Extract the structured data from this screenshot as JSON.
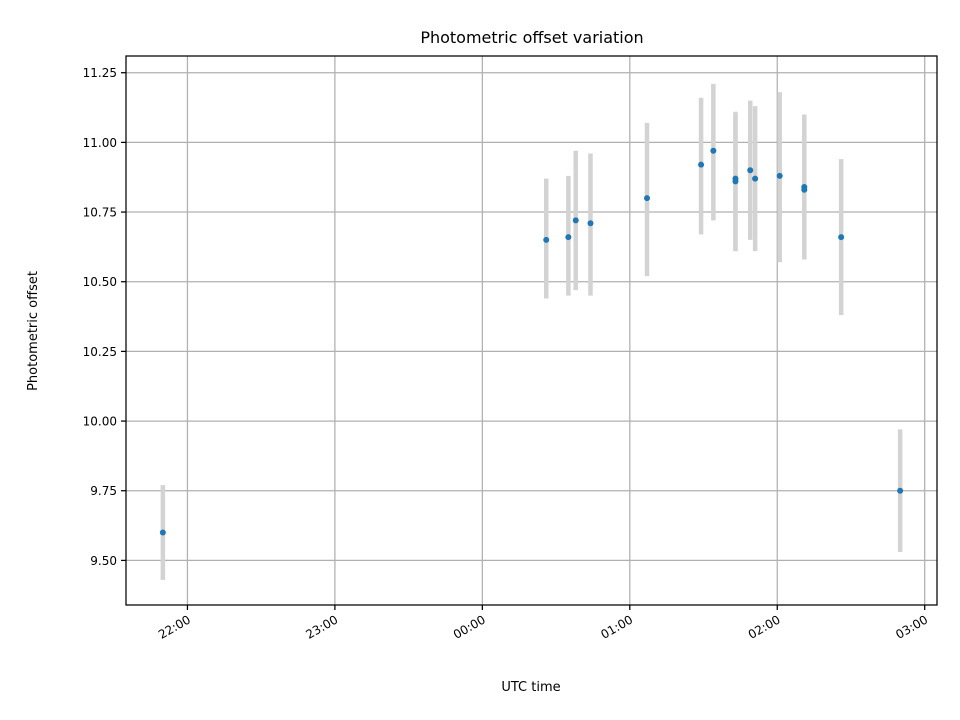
{
  "chart_data": {
    "type": "scatter",
    "title": "Photometric offset variation",
    "xlabel": "UTC time",
    "ylabel": "Photometric offset",
    "x_axis": {
      "kind": "time",
      "ticks": [
        "22:00",
        "23:00",
        "00:00",
        "01:00",
        "02:00",
        "03:00"
      ],
      "range": [
        "21:35",
        "03:05"
      ]
    },
    "y_axis": {
      "range": [
        9.34,
        11.31
      ],
      "ticks": [
        "9.50",
        "9.75",
        "10.00",
        "10.25",
        "10.50",
        "10.75",
        "11.00",
        "11.25"
      ]
    },
    "grid": true,
    "series": [
      {
        "marker_color": "#1f77b4",
        "errorbar_color": "#d3d3d3",
        "points": [
          {
            "x": "21:50",
            "y": 9.6,
            "low": 9.43,
            "high": 9.77
          },
          {
            "x": "00:26",
            "y": 10.65,
            "low": 10.44,
            "high": 10.87
          },
          {
            "x": "00:35",
            "y": 10.66,
            "low": 10.45,
            "high": 10.88
          },
          {
            "x": "00:38",
            "y": 10.72,
            "low": 10.47,
            "high": 10.97
          },
          {
            "x": "00:44",
            "y": 10.71,
            "low": 10.45,
            "high": 10.96
          },
          {
            "x": "01:07",
            "y": 10.8,
            "low": 10.52,
            "high": 11.07
          },
          {
            "x": "01:29",
            "y": 10.92,
            "low": 10.67,
            "high": 11.16
          },
          {
            "x": "01:34",
            "y": 10.97,
            "low": 10.72,
            "high": 11.21
          },
          {
            "x": "01:43",
            "y": 10.87,
            "low": 10.61,
            "high": 11.11
          },
          {
            "x": "01:43",
            "y": 10.86,
            "low": 10.61,
            "high": 11.1
          },
          {
            "x": "01:49",
            "y": 10.9,
            "low": 10.65,
            "high": 11.15
          },
          {
            "x": "01:51",
            "y": 10.87,
            "low": 10.61,
            "high": 11.13
          },
          {
            "x": "02:01",
            "y": 10.88,
            "low": 10.57,
            "high": 11.18
          },
          {
            "x": "02:11",
            "y": 10.84,
            "low": 10.58,
            "high": 11.1
          },
          {
            "x": "02:11",
            "y": 10.83,
            "low": 10.58,
            "high": 11.07
          },
          {
            "x": "02:26",
            "y": 10.66,
            "low": 10.38,
            "high": 10.94
          },
          {
            "x": "02:50",
            "y": 9.75,
            "low": 9.53,
            "high": 9.97
          }
        ]
      }
    ]
  }
}
